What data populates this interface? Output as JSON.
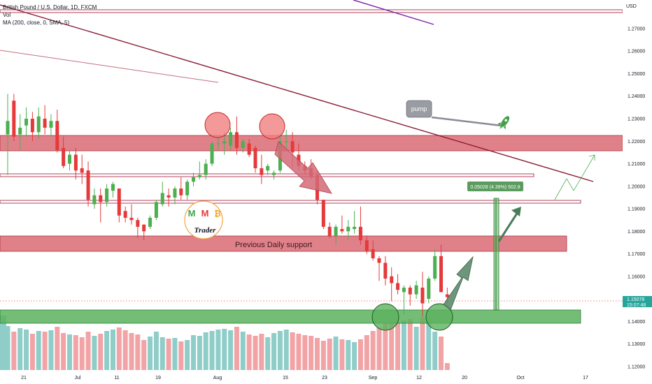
{
  "header": {
    "symbol": "British Pound / U.S. Dollar, 1D, FXCM",
    "vol_label": "Vol",
    "ma_label": "MA (200, close, 0, SMA, 5)"
  },
  "price_axis": {
    "currency": "USD",
    "ticks": [
      "1.27000",
      "1.26000",
      "1.25000",
      "1.24000",
      "1.23000",
      "1.22000",
      "1.21000",
      "1.20000",
      "1.19000",
      "1.18000",
      "1.17000",
      "1.16000",
      "1.14000",
      "1.13000",
      "1.12000"
    ],
    "current_price": "1.15078",
    "countdown": "15:07:48"
  },
  "time_axis": {
    "labels": [
      "21",
      "Jul",
      "11",
      "19",
      "Aug",
      "15",
      "23",
      "Sep",
      "12",
      "20",
      "Oct",
      "17"
    ]
  },
  "annotations": {
    "support_label": "Previous Daily support",
    "pump_label": "pump",
    "measure_label": "0.05028 (4.39%) 502.8",
    "logo_letters": [
      "M",
      "M",
      "₿"
    ],
    "logo_text": "Trader"
  },
  "colors": {
    "bull": "#4caf50",
    "bear": "#e5393a",
    "vol_bull": "#8fcdc9",
    "vol_bear": "#f2a3a6",
    "resistance_zone": "#d9656f",
    "support_zone": "#62b466",
    "trendline": "#8a1c34",
    "purple_line": "#7b1fa2"
  },
  "chart_data": {
    "type": "candlestick",
    "price_range": [
      1.1184,
      1.2827
    ],
    "current_price": 1.15078,
    "candles": [
      {
        "o": 1.223,
        "h": 1.241,
        "l": 1.205,
        "c": 1.229
      },
      {
        "o": 1.238,
        "h": 1.241,
        "l": 1.22,
        "c": 1.222
      },
      {
        "o": 1.223,
        "h": 1.232,
        "l": 1.216,
        "c": 1.226
      },
      {
        "o": 1.227,
        "h": 1.235,
        "l": 1.222,
        "c": 1.23
      },
      {
        "o": 1.23,
        "h": 1.233,
        "l": 1.22,
        "c": 1.224
      },
      {
        "o": 1.224,
        "h": 1.235,
        "l": 1.221,
        "c": 1.231
      },
      {
        "o": 1.23,
        "h": 1.236,
        "l": 1.223,
        "c": 1.226
      },
      {
        "o": 1.226,
        "h": 1.232,
        "l": 1.222,
        "c": 1.229
      },
      {
        "o": 1.229,
        "h": 1.234,
        "l": 1.215,
        "c": 1.216
      },
      {
        "o": 1.217,
        "h": 1.222,
        "l": 1.208,
        "c": 1.209
      },
      {
        "o": 1.21,
        "h": 1.216,
        "l": 1.207,
        "c": 1.214
      },
      {
        "o": 1.214,
        "h": 1.217,
        "l": 1.203,
        "c": 1.207
      },
      {
        "o": 1.208,
        "h": 1.214,
        "l": 1.201,
        "c": 1.206
      },
      {
        "o": 1.207,
        "h": 1.211,
        "l": 1.191,
        "c": 1.194
      },
      {
        "o": 1.192,
        "h": 1.199,
        "l": 1.19,
        "c": 1.196
      },
      {
        "o": 1.196,
        "h": 1.199,
        "l": 1.184,
        "c": 1.193
      },
      {
        "o": 1.193,
        "h": 1.201,
        "l": 1.191,
        "c": 1.199
      },
      {
        "o": 1.198,
        "h": 1.202,
        "l": 1.195,
        "c": 1.201
      },
      {
        "o": 1.199,
        "h": 1.199,
        "l": 1.184,
        "c": 1.187
      },
      {
        "o": 1.189,
        "h": 1.191,
        "l": 1.184,
        "c": 1.186
      },
      {
        "o": 1.186,
        "h": 1.192,
        "l": 1.183,
        "c": 1.185
      },
      {
        "o": 1.185,
        "h": 1.186,
        "l": 1.177,
        "c": 1.182
      },
      {
        "o": 1.183,
        "h": 1.183,
        "l": 1.176,
        "c": 1.18
      },
      {
        "o": 1.182,
        "h": 1.187,
        "l": 1.181,
        "c": 1.186
      },
      {
        "o": 1.186,
        "h": 1.194,
        "l": 1.185,
        "c": 1.193
      },
      {
        "o": 1.192,
        "h": 1.202,
        "l": 1.191,
        "c": 1.197
      },
      {
        "o": 1.196,
        "h": 1.199,
        "l": 1.191,
        "c": 1.195
      },
      {
        "o": 1.195,
        "h": 1.2,
        "l": 1.192,
        "c": 1.199
      },
      {
        "o": 1.199,
        "h": 1.204,
        "l": 1.194,
        "c": 1.196
      },
      {
        "o": 1.196,
        "h": 1.203,
        "l": 1.194,
        "c": 1.202
      },
      {
        "o": 1.202,
        "h": 1.206,
        "l": 1.2,
        "c": 1.204
      },
      {
        "o": 1.204,
        "h": 1.211,
        "l": 1.203,
        "c": 1.205
      },
      {
        "o": 1.205,
        "h": 1.212,
        "l": 1.203,
        "c": 1.21
      },
      {
        "o": 1.21,
        "h": 1.22,
        "l": 1.209,
        "c": 1.219
      },
      {
        "o": 1.219,
        "h": 1.222,
        "l": 1.216,
        "c": 1.219
      },
      {
        "o": 1.219,
        "h": 1.224,
        "l": 1.214,
        "c": 1.22
      },
      {
        "o": 1.218,
        "h": 1.226,
        "l": 1.216,
        "c": 1.224
      },
      {
        "o": 1.224,
        "h": 1.231,
        "l": 1.214,
        "c": 1.217
      },
      {
        "o": 1.217,
        "h": 1.221,
        "l": 1.215,
        "c": 1.22
      },
      {
        "o": 1.219,
        "h": 1.221,
        "l": 1.213,
        "c": 1.214
      },
      {
        "o": 1.217,
        "h": 1.218,
        "l": 1.206,
        "c": 1.208
      },
      {
        "o": 1.208,
        "h": 1.214,
        "l": 1.201,
        "c": 1.205
      },
      {
        "o": 1.207,
        "h": 1.21,
        "l": 1.205,
        "c": 1.209
      },
      {
        "o": 1.205,
        "h": 1.207,
        "l": 1.203,
        "c": 1.206
      },
      {
        "o": 1.207,
        "h": 1.223,
        "l": 1.206,
        "c": 1.22
      },
      {
        "o": 1.22,
        "h": 1.225,
        "l": 1.217,
        "c": 1.22
      },
      {
        "o": 1.22,
        "h": 1.224,
        "l": 1.208,
        "c": 1.215
      },
      {
        "o": 1.214,
        "h": 1.219,
        "l": 1.207,
        "c": 1.209
      },
      {
        "o": 1.209,
        "h": 1.211,
        "l": 1.205,
        "c": 1.207
      },
      {
        "o": 1.208,
        "h": 1.212,
        "l": 1.203,
        "c": 1.204
      },
      {
        "o": 1.205,
        "h": 1.207,
        "l": 1.192,
        "c": 1.194
      },
      {
        "o": 1.194,
        "h": 1.194,
        "l": 1.181,
        "c": 1.182
      },
      {
        "o": 1.182,
        "h": 1.184,
        "l": 1.177,
        "c": 1.178
      },
      {
        "o": 1.178,
        "h": 1.183,
        "l": 1.174,
        "c": 1.182
      },
      {
        "o": 1.181,
        "h": 1.187,
        "l": 1.179,
        "c": 1.18
      },
      {
        "o": 1.18,
        "h": 1.185,
        "l": 1.176,
        "c": 1.182
      },
      {
        "o": 1.181,
        "h": 1.189,
        "l": 1.179,
        "c": 1.182
      },
      {
        "o": 1.182,
        "h": 1.191,
        "l": 1.174,
        "c": 1.176
      },
      {
        "o": 1.176,
        "h": 1.178,
        "l": 1.17,
        "c": 1.171
      },
      {
        "o": 1.172,
        "h": 1.176,
        "l": 1.167,
        "c": 1.168
      },
      {
        "o": 1.168,
        "h": 1.169,
        "l": 1.158,
        "c": 1.166
      },
      {
        "o": 1.166,
        "h": 1.169,
        "l": 1.156,
        "c": 1.159
      },
      {
        "o": 1.16,
        "h": 1.164,
        "l": 1.149,
        "c": 1.157
      },
      {
        "o": 1.157,
        "h": 1.161,
        "l": 1.152,
        "c": 1.154
      },
      {
        "o": 1.153,
        "h": 1.156,
        "l": 1.143,
        "c": 1.155
      },
      {
        "o": 1.155,
        "h": 1.156,
        "l": 1.147,
        "c": 1.152
      },
      {
        "o": 1.152,
        "h": 1.158,
        "l": 1.15,
        "c": 1.156
      },
      {
        "o": 1.155,
        "h": 1.162,
        "l": 1.142,
        "c": 1.148
      },
      {
        "o": 1.15,
        "h": 1.16,
        "l": 1.148,
        "c": 1.159
      },
      {
        "o": 1.159,
        "h": 1.172,
        "l": 1.158,
        "c": 1.169
      },
      {
        "o": 1.169,
        "h": 1.174,
        "l": 1.153,
        "c": 1.153
      },
      {
        "o": 1.152,
        "h": 1.155,
        "l": 1.148,
        "c": 1.1508
      }
    ],
    "volume": [
      0.63,
      0.55,
      0.6,
      0.58,
      0.52,
      0.56,
      0.55,
      0.57,
      0.62,
      0.53,
      0.51,
      0.5,
      0.47,
      0.55,
      0.49,
      0.52,
      0.56,
      0.58,
      0.61,
      0.57,
      0.53,
      0.51,
      0.43,
      0.48,
      0.55,
      0.47,
      0.45,
      0.46,
      0.41,
      0.43,
      0.5,
      0.49,
      0.54,
      0.56,
      0.58,
      0.59,
      0.57,
      0.62,
      0.55,
      0.51,
      0.49,
      0.52,
      0.47,
      0.53,
      0.56,
      0.58,
      0.54,
      0.52,
      0.5,
      0.49,
      0.46,
      0.42,
      0.45,
      0.48,
      0.44,
      0.43,
      0.4,
      0.44,
      0.5,
      0.56,
      0.61,
      0.67,
      0.7,
      0.68,
      0.71,
      0.73,
      0.62,
      0.75,
      0.78,
      0.55,
      0.48,
      0.1
    ],
    "horizontal_levels": [
      1.2776,
      1.22,
      1.205,
      1.1936,
      1.1764,
      1.1425
    ],
    "zones": [
      {
        "label": "resistance",
        "from": 1.217,
        "to": 1.223
      },
      {
        "label": "Previous Daily support",
        "from": 1.1733,
        "to": 1.1778
      },
      {
        "label": "support",
        "from": 1.1408,
        "to": 1.1442
      }
    ],
    "measurement": {
      "from": 1.14455,
      "to": 1.19483,
      "change": 0.05028,
      "percent": 4.39,
      "ticks": 502.8
    }
  }
}
